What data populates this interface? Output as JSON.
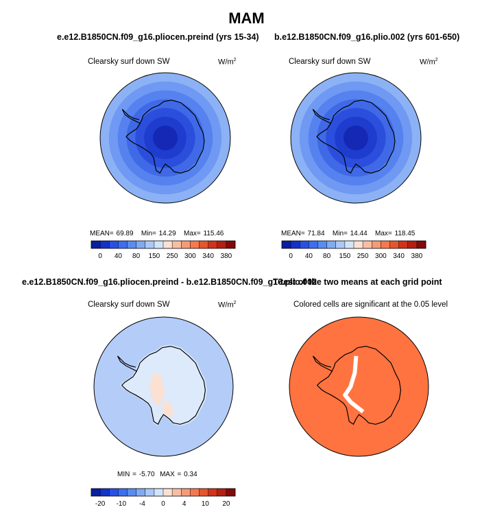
{
  "figure_title": "MAM",
  "panels": [
    {
      "title": "e.e12.B1850CN.f09_g16.pliocen.preind (yrs 15-34)",
      "label": "Clearsky surf down SW",
      "units": "W/m",
      "units_sup": "2",
      "stats": {
        "mean_label": "MEAN=",
        "mean": "69.89",
        "min_label": "Min=",
        "min": "14.29",
        "max_label": "Max=",
        "max": "115.46"
      },
      "colorbar_labels": [
        "0",
        "40",
        "80",
        "150",
        "250",
        "300",
        "340",
        "380"
      ]
    },
    {
      "title": "b.e12.B1850CN.f09_g16.plio.002 (yrs 601-650)",
      "label": "Clearsky surf down SW",
      "units": "W/m",
      "units_sup": "2",
      "stats": {
        "mean_label": "MEAN=",
        "mean": "71.84",
        "min_label": "Min=",
        "min": "14.44",
        "max_label": "Max=",
        "max": "118.45"
      },
      "colorbar_labels": [
        "0",
        "40",
        "80",
        "150",
        "250",
        "300",
        "340",
        "380"
      ]
    },
    {
      "title": "e.e12.B1850CN.f09_g16.pliocen.preind - b.e12.B1850CN.f09_g16.plio.002",
      "label": "Clearsky surf down SW",
      "units": "W/m",
      "units_sup": "2",
      "stats": {
        "min_label": "MIN =",
        "min": "-5.70",
        "max_label": "MAX =",
        "max": "0.34"
      },
      "colorbar_labels": [
        "-20",
        "-10",
        "-4",
        "0",
        "4",
        "10",
        "20"
      ]
    },
    {
      "title": "T-test of the two means at each grid point",
      "label": "Colored cells are significant at the 0.05 level"
    }
  ],
  "colors": {
    "seq_colorbar": [
      "#0a1ea0",
      "#1432c8",
      "#2850e6",
      "#3c6ef0",
      "#5a8cf0",
      "#82aaf0",
      "#aac8f8",
      "#d2e4fa",
      "#fbe1d2",
      "#f8bea5",
      "#f59b78",
      "#f57850",
      "#e6552d",
      "#d23219",
      "#b41e14",
      "#820a0a"
    ],
    "diff_colorbar": [
      "#0a1ea0",
      "#1432c8",
      "#2850e6",
      "#3c6ef0",
      "#5a8cf0",
      "#82aaf0",
      "#aac8f8",
      "#d2e4fa",
      "#fbe1d2",
      "#f8bea5",
      "#f59b78",
      "#f57850",
      "#e6552d",
      "#d23219",
      "#b41e14",
      "#820a0a"
    ],
    "ring_colors": [
      "#8cb2f5",
      "#6f99f2",
      "#5682ef",
      "#3f69e6",
      "#2b4fdc",
      "#1e3ccd",
      "#1428b4"
    ],
    "diff_ocean": "#b4cdf8",
    "diff_land": "#dceafc",
    "diff_warm": "#fbe1d2",
    "ttest_fill": "#ff7340"
  },
  "chart_data": [
    {
      "type": "heatmap",
      "title": "e.e12.B1850CN.f09_g16.pliocen.preind (yrs 15-34)",
      "variable": "Clearsky surf down SW",
      "units": "W/m2",
      "mean": 69.89,
      "min": 14.29,
      "max": 115.46,
      "colorbar_levels": [
        0,
        40,
        80,
        150,
        250,
        300,
        340,
        380
      ]
    },
    {
      "type": "heatmap",
      "title": "b.e12.B1850CN.f09_g16.plio.002 (yrs 601-650)",
      "variable": "Clearsky surf down SW",
      "units": "W/m2",
      "mean": 71.84,
      "min": 14.44,
      "max": 118.45,
      "colorbar_levels": [
        0,
        40,
        80,
        150,
        250,
        300,
        340,
        380
      ]
    },
    {
      "type": "heatmap",
      "title": "e.e12.B1850CN.f09_g16.pliocen.preind - b.e12.B1850CN.f09_g16.plio.002",
      "variable": "Clearsky surf down SW",
      "units": "W/m2",
      "min": -5.7,
      "max": 0.34,
      "colorbar_levels": [
        -20,
        -10,
        -4,
        0,
        4,
        10,
        20
      ]
    },
    {
      "type": "heatmap",
      "title": "T-test of the two means at each grid point",
      "note": "Colored cells are significant at the 0.05 level"
    }
  ]
}
